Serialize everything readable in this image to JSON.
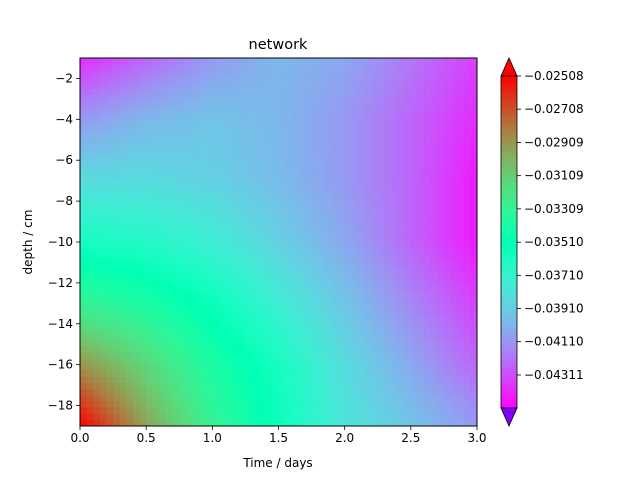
{
  "chart_data": {
    "type": "heatmap",
    "title": "network",
    "xlabel": "Time / days",
    "ylabel": "depth / cm",
    "xlim": [
      0.0,
      3.0
    ],
    "ylim": [
      -19.0,
      -1.0
    ],
    "x_ticks": [
      0.0,
      0.5,
      1.0,
      1.5,
      2.0,
      2.5,
      3.0
    ],
    "x_tick_labels": [
      "0.0",
      "0.5",
      "1.0",
      "1.5",
      "2.0",
      "2.5",
      "3.0"
    ],
    "y_ticks": [
      -2,
      -4,
      -6,
      -8,
      -10,
      -12,
      -14,
      -16,
      -18
    ],
    "y_tick_labels": [
      "−2",
      "−4",
      "−6",
      "−8",
      "−10",
      "−12",
      "−14",
      "−16",
      "−18"
    ],
    "colormap": "rainbow",
    "colorbar": {
      "ticks": [
        -0.02508,
        -0.02708,
        -0.02909,
        -0.03109,
        -0.03309,
        -0.0351,
        -0.0371,
        -0.0391,
        -0.0411,
        -0.04311
      ],
      "tick_labels": [
        "−0.02508",
        "−0.02708",
        "−0.02909",
        "−0.03109",
        "−0.03309",
        "−0.03510",
        "−0.03710",
        "−0.03910",
        "−0.04110",
        "−0.04311"
      ],
      "extend": "both",
      "vmin": -0.0451,
      "vmax": -0.02508
    },
    "grid_values": {
      "x": [
        0.0,
        0.5,
        1.0,
        1.5,
        2.0,
        2.5,
        3.0
      ],
      "y": [
        -1,
        -4,
        -7,
        -10,
        -13,
        -16,
        -19
      ],
      "z": [
        [
          -0.044,
          -0.0425,
          -0.041,
          -0.04,
          -0.0405,
          -0.042,
          -0.0435
        ],
        [
          -0.041,
          -0.04,
          -0.0395,
          -0.04,
          -0.041,
          -0.0425,
          -0.044
        ],
        [
          -0.0385,
          -0.0385,
          -0.039,
          -0.0398,
          -0.041,
          -0.0425,
          -0.0445
        ],
        [
          -0.036,
          -0.0365,
          -0.0375,
          -0.039,
          -0.0405,
          -0.0425,
          -0.0445
        ],
        [
          -0.033,
          -0.034,
          -0.0355,
          -0.0375,
          -0.0395,
          -0.0415,
          -0.0435
        ],
        [
          -0.029,
          -0.0315,
          -0.034,
          -0.036,
          -0.0385,
          -0.0405,
          -0.0425
        ],
        [
          -0.025,
          -0.0295,
          -0.033,
          -0.0355,
          -0.038,
          -0.0395,
          -0.041
        ]
      ]
    }
  }
}
